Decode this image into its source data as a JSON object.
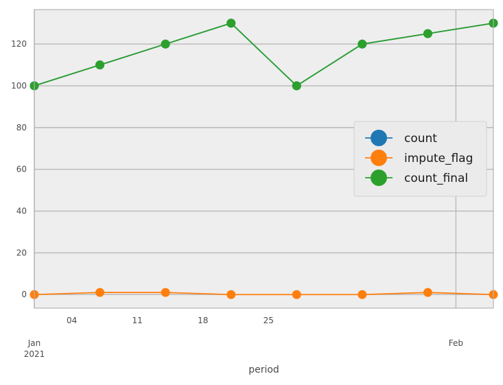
{
  "chart_data": {
    "type": "line",
    "xlabel": "period",
    "x": [
      "2020-12-31",
      "2021-01-07",
      "2021-01-14",
      "2021-01-21",
      "2021-01-28",
      "2021-02-04",
      "2021-02-11",
      "2021-02-18"
    ],
    "xlim": [
      "2020-12-31",
      "2021-02-18"
    ],
    "x_ticks": [
      {
        "date": "2021-01-04",
        "label": "04"
      },
      {
        "date": "2021-01-11",
        "label": "11"
      },
      {
        "date": "2021-01-18",
        "label": "18"
      },
      {
        "date": "2021-01-25",
        "label": "25"
      }
    ],
    "x_major_ticks": [
      {
        "date": "2020-12-31",
        "label": "Jan\n2021"
      },
      {
        "date": "2021-02-14",
        "label": "Feb"
      }
    ],
    "ylim": [
      -6.5,
      136.5
    ],
    "y_ticks": [
      0,
      20,
      40,
      60,
      80,
      100,
      120
    ],
    "grid": true,
    "legend_position": "center-right",
    "series": [
      {
        "name": "count",
        "color": "#1f77b4",
        "values": [
          100,
          110,
          120,
          130,
          100,
          120,
          125,
          130
        ]
      },
      {
        "name": "impute_flag",
        "color": "#ff7f0e",
        "values": [
          0,
          1,
          1,
          0,
          0,
          0,
          1,
          0
        ]
      },
      {
        "name": "count_final",
        "color": "#2ca02c",
        "values": [
          100,
          110,
          120,
          130,
          100,
          120,
          125,
          130
        ]
      }
    ]
  }
}
